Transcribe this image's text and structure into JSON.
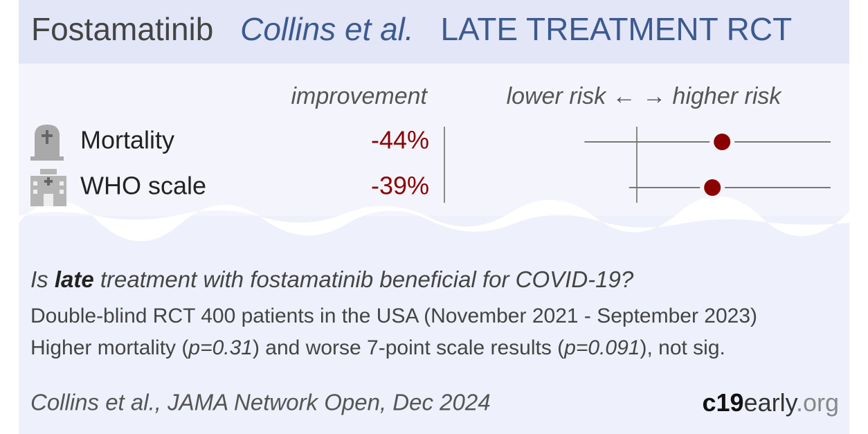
{
  "header": {
    "drug": "Fostamatinib",
    "study": "Collins et al.",
    "label": "LATE TREATMENT RCT"
  },
  "chart_data": {
    "type": "forest",
    "column_headers": [
      "improvement",
      "lower risk ← → higher risk"
    ],
    "categories": [
      "Mortality",
      "WHO scale"
    ],
    "improvements": [
      -44,
      -39
    ],
    "improvement_labels": [
      "-44%",
      "-39%"
    ],
    "values": [
      1.44,
      1.39
    ],
    "ci_low": [
      0.73,
      0.96
    ],
    "ci_high": [
      2,
      2
    ],
    "xlim": [
      0,
      2
    ],
    "ref_line": 1,
    "color": "#8b0000"
  },
  "summary": {
    "question": {
      "before": "Is ",
      "emphasis": "late",
      "after": " treatment with fostamatinib beneficial for COVID-19?"
    },
    "design": "Double-blind RCT 400 patients in the USA (November 2021 - September 2023)",
    "result": [
      "Higher mortality (",
      "p=0.31",
      ") and worse 7-point scale results (",
      "p=0.091",
      "), not sig."
    ]
  },
  "footer": {
    "citation": "Collins et al., JAMA Network Open, Dec 2024",
    "logo": [
      "c19",
      "early",
      ".org"
    ]
  }
}
